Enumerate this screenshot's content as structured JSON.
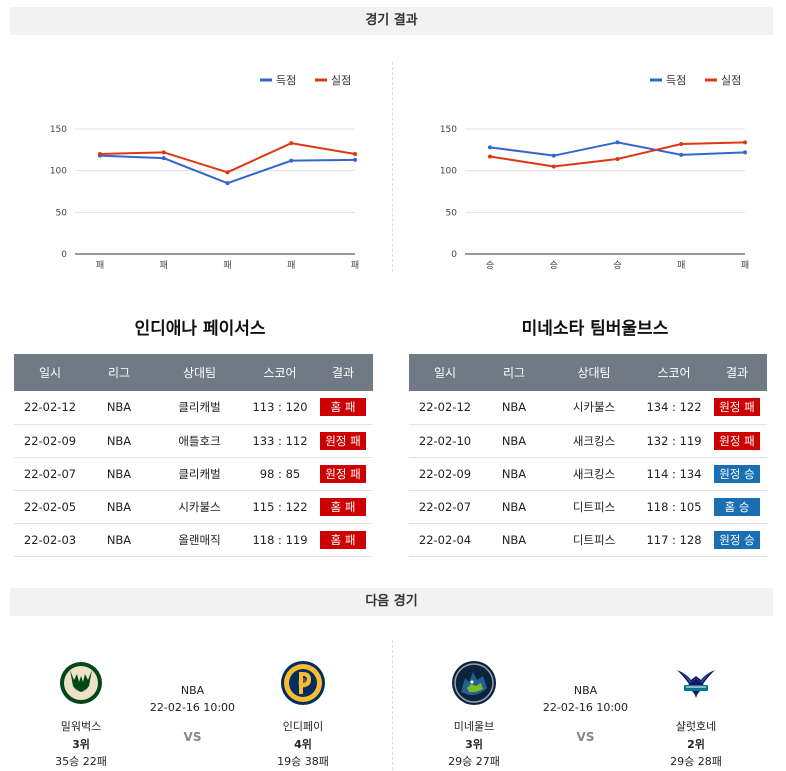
{
  "headers": {
    "result": "경기 결과",
    "next": "다음 경기"
  },
  "legend": {
    "scored": "득점",
    "conceded": "실점"
  },
  "colors": {
    "scored": "#3366cc",
    "conceded": "#dc3912",
    "loss": "#cc0000",
    "win": "#1a6fb3",
    "table_header": "#6f7a84"
  },
  "chart_data": [
    {
      "type": "line",
      "categories": [
        "패",
        "패",
        "패",
        "패",
        "패"
      ],
      "yticks": [
        0,
        50,
        100,
        150
      ],
      "ylim": [
        0,
        150
      ],
      "legend_position": "top-right",
      "grid": true,
      "series": [
        {
          "name": "득점",
          "values": [
            118,
            115,
            85,
            112,
            113
          ]
        },
        {
          "name": "실점",
          "values": [
            120,
            122,
            98,
            133,
            120
          ]
        }
      ]
    },
    {
      "type": "line",
      "categories": [
        "승",
        "승",
        "승",
        "패",
        "패"
      ],
      "yticks": [
        0,
        50,
        100,
        150
      ],
      "ylim": [
        0,
        150
      ],
      "legend_position": "top-right",
      "grid": true,
      "series": [
        {
          "name": "득점",
          "values": [
            128,
            118,
            134,
            119,
            122
          ]
        },
        {
          "name": "실점",
          "values": [
            117,
            105,
            114,
            132,
            134
          ]
        }
      ]
    }
  ],
  "columns": [
    "일시",
    "리그",
    "상대팀",
    "스코어",
    "결과"
  ],
  "left": {
    "team": "인디애나 페이서스",
    "rows": [
      {
        "date": "22-02-12",
        "league": "NBA",
        "opponent": "클리캐벌",
        "score": "113 : 120",
        "result": "홈 패",
        "outcome": "loss"
      },
      {
        "date": "22-02-09",
        "league": "NBA",
        "opponent": "애틀호크",
        "score": "133 : 112",
        "result": "원정 패",
        "outcome": "loss"
      },
      {
        "date": "22-02-07",
        "league": "NBA",
        "opponent": "클리캐벌",
        "score": "98 : 85",
        "result": "원정 패",
        "outcome": "loss"
      },
      {
        "date": "22-02-05",
        "league": "NBA",
        "opponent": "시카불스",
        "score": "115 : 122",
        "result": "홈 패",
        "outcome": "loss"
      },
      {
        "date": "22-02-03",
        "league": "NBA",
        "opponent": "올랜매직",
        "score": "118 : 119",
        "result": "홈 패",
        "outcome": "loss"
      }
    ]
  },
  "right": {
    "team": "미네소타 팀버울브스",
    "rows": [
      {
        "date": "22-02-12",
        "league": "NBA",
        "opponent": "시카불스",
        "score": "134 : 122",
        "result": "원정 패",
        "outcome": "loss"
      },
      {
        "date": "22-02-10",
        "league": "NBA",
        "opponent": "새크킹스",
        "score": "132 : 119",
        "result": "원정 패",
        "outcome": "loss"
      },
      {
        "date": "22-02-09",
        "league": "NBA",
        "opponent": "새크킹스",
        "score": "114 : 134",
        "result": "원정 승",
        "outcome": "win"
      },
      {
        "date": "22-02-07",
        "league": "NBA",
        "opponent": "디트피스",
        "score": "118 : 105",
        "result": "홈 승",
        "outcome": "win"
      },
      {
        "date": "22-02-04",
        "league": "NBA",
        "opponent": "디트피스",
        "score": "117 : 128",
        "result": "원정 승",
        "outcome": "win"
      }
    ]
  },
  "next_matches": [
    {
      "league": "NBA",
      "datetime": "22-02-16 10:00",
      "vs": "VS",
      "home": {
        "name": "밀워벅스",
        "rank": "3위",
        "record": "35승 22패",
        "logo": "bucks-logo-icon"
      },
      "away": {
        "name": "인디페이",
        "rank": "4위",
        "record": "19승 38패",
        "logo": "pacers-logo-icon"
      }
    },
    {
      "league": "NBA",
      "datetime": "22-02-16 10:00",
      "vs": "VS",
      "home": {
        "name": "미네울브",
        "rank": "3위",
        "record": "29승 27패",
        "logo": "timberwolves-logo-icon"
      },
      "away": {
        "name": "샬럿호네",
        "rank": "2위",
        "record": "29승 28패",
        "logo": "hornets-logo-icon"
      }
    }
  ]
}
